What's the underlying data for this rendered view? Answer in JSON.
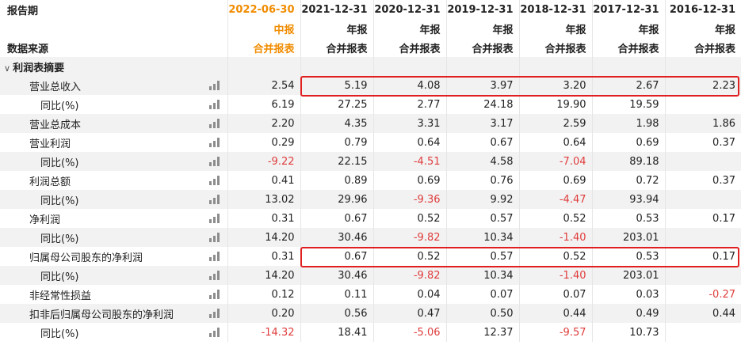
{
  "header": {
    "period_label": "报告期",
    "source_label": "数据来源",
    "columns": [
      {
        "date": "2022-06-30",
        "type": "中报",
        "source": "合并报表"
      },
      {
        "date": "2021-12-31",
        "type": "年报",
        "source": "合并报表"
      },
      {
        "date": "2020-12-31",
        "type": "年报",
        "source": "合并报表"
      },
      {
        "date": "2019-12-31",
        "type": "年报",
        "source": "合并报表"
      },
      {
        "date": "2018-12-31",
        "type": "年报",
        "source": "合并报表"
      },
      {
        "date": "2017-12-31",
        "type": "年报",
        "source": "合并报表"
      },
      {
        "date": "2016-12-31",
        "type": "年报",
        "source": "合并报表"
      }
    ]
  },
  "section": {
    "label": "利润表摘要",
    "toggle_icon": "chevron-down"
  },
  "rows": [
    {
      "label": "营业总收入",
      "values": [
        "2.54",
        "5.19",
        "4.08",
        "3.97",
        "3.20",
        "2.67",
        "2.23"
      ]
    },
    {
      "label": "同比(%)",
      "values": [
        "6.19",
        "27.25",
        "2.77",
        "24.18",
        "19.90",
        "19.59",
        ""
      ]
    },
    {
      "label": "营业总成本",
      "values": [
        "2.20",
        "4.35",
        "3.31",
        "3.17",
        "2.59",
        "1.98",
        "1.86"
      ]
    },
    {
      "label": "营业利润",
      "values": [
        "0.29",
        "0.79",
        "0.64",
        "0.67",
        "0.64",
        "0.69",
        "0.37"
      ]
    },
    {
      "label": "同比(%)",
      "values": [
        "-9.22",
        "22.15",
        "-4.51",
        "4.58",
        "-7.04",
        "89.18",
        ""
      ]
    },
    {
      "label": "利润总额",
      "values": [
        "0.41",
        "0.89",
        "0.69",
        "0.76",
        "0.69",
        "0.72",
        "0.37"
      ]
    },
    {
      "label": "同比(%)",
      "values": [
        "13.02",
        "29.96",
        "-9.36",
        "9.92",
        "-4.47",
        "93.94",
        ""
      ]
    },
    {
      "label": "净利润",
      "values": [
        "0.31",
        "0.67",
        "0.52",
        "0.57",
        "0.52",
        "0.53",
        "0.17"
      ]
    },
    {
      "label": "同比(%)",
      "values": [
        "14.20",
        "30.46",
        "-9.82",
        "10.34",
        "-1.40",
        "203.01",
        ""
      ]
    },
    {
      "label": "归属母公司股东的净利润",
      "values": [
        "0.31",
        "0.67",
        "0.52",
        "0.57",
        "0.52",
        "0.53",
        "0.17"
      ]
    },
    {
      "label": "同比(%)",
      "values": [
        "14.20",
        "30.46",
        "-9.82",
        "10.34",
        "-1.40",
        "203.01",
        ""
      ]
    },
    {
      "label": "非经常性损益",
      "values": [
        "0.12",
        "0.11",
        "0.04",
        "0.07",
        "0.07",
        "0.03",
        "-0.27"
      ]
    },
    {
      "label": "扣非后归属母公司股东的净利润",
      "values": [
        "0.20",
        "0.56",
        "0.47",
        "0.50",
        "0.44",
        "0.49",
        "0.44"
      ]
    },
    {
      "label": "同比(%)",
      "values": [
        "-14.32",
        "18.41",
        "-5.06",
        "12.37",
        "-9.57",
        "10.73",
        ""
      ]
    }
  ],
  "colors": {
    "highlight_border": "#e02020",
    "negative": "#e03c3c",
    "current_period": "#f08c00",
    "stripe": "#f2f2f2"
  }
}
